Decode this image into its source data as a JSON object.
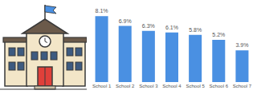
{
  "chart_data": {
    "type": "bar",
    "categories": [
      "School 1",
      "School 2",
      "School 3",
      "School 4",
      "School 5",
      "School 6",
      "School 7"
    ],
    "values": [
      8.1,
      6.9,
      6.3,
      6.1,
      5.8,
      5.2,
      3.9
    ],
    "value_labels": [
      "8.1%",
      "6.9%",
      "6.3%",
      "6.1%",
      "5.8%",
      "5.2%",
      "3.9%"
    ],
    "color": "#4a90e2",
    "data_labels": true,
    "tick_labels": "x",
    "grid": false
  }
}
